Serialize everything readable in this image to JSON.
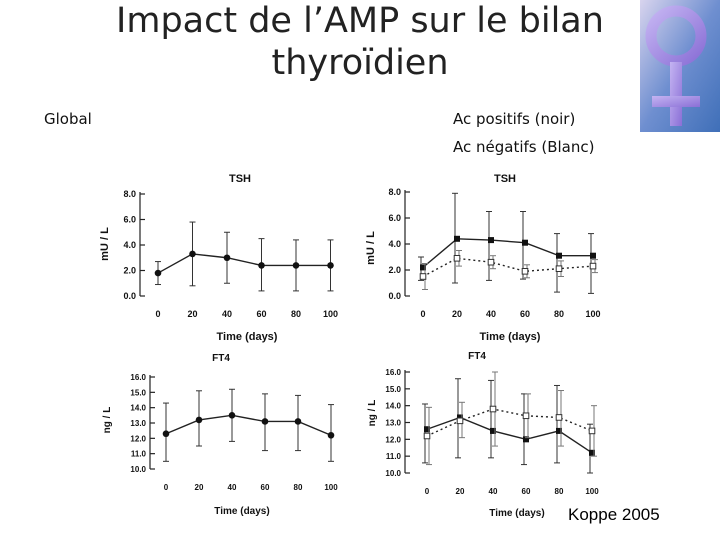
{
  "slide": {
    "title_line1": "Impact de l’AMP sur le bilan",
    "title_line2": "thyroïdien",
    "label_global": "Global",
    "label_positive": "Ac positifs (noir)",
    "label_negative": "Ac négatifs (Blanc)",
    "credit": "Koppe 2005"
  },
  "logo": {
    "icon": "female-symbol-icon",
    "color": "#8a6fd6",
    "background": "#4a7fc0"
  },
  "chart_data": [
    {
      "id": "tsh-global",
      "type": "line",
      "title": "TSH",
      "xlabel": "Time (days)",
      "ylabel": "mU / L",
      "x": [
        0,
        20,
        40,
        60,
        80,
        100
      ],
      "x_tick_labels": [
        "0",
        "20",
        "40",
        "60",
        "80",
        "100"
      ],
      "y_tick_labels": [
        "0.0",
        "2.0",
        "4.0",
        "6.0",
        "8.0"
      ],
      "ylim": [
        0,
        8
      ],
      "series": [
        {
          "name": "Global",
          "style": "solid",
          "marker": "filled-circle",
          "values": [
            1.8,
            3.3,
            3.0,
            2.4,
            2.4,
            2.4
          ],
          "err_upper": [
            2.7,
            5.8,
            5.0,
            4.5,
            4.4,
            4.4
          ],
          "err_lower": [
            0.9,
            0.8,
            1.0,
            0.4,
            0.4,
            0.4
          ]
        }
      ]
    },
    {
      "id": "tsh-antibodies",
      "type": "line",
      "title": "TSH",
      "xlabel": "Time (days)",
      "ylabel": "mU / L",
      "x": [
        0,
        20,
        40,
        60,
        80,
        100
      ],
      "x_tick_labels": [
        "0",
        "20",
        "40",
        "60",
        "80",
        "100"
      ],
      "y_tick_labels": [
        "0.0",
        "2.0",
        "4.0",
        "6.0",
        "8.0"
      ],
      "ylim": [
        0,
        8
      ],
      "series": [
        {
          "name": "Ac positifs",
          "style": "solid",
          "marker": "filled-square",
          "values": [
            2.2,
            4.4,
            4.3,
            4.1,
            3.1,
            3.1
          ],
          "err_upper": [
            3.0,
            7.9,
            6.5,
            6.5,
            4.8,
            4.8
          ],
          "err_lower": [
            1.2,
            1.0,
            1.2,
            1.3,
            0.3,
            0.2
          ]
        },
        {
          "name": "Ac négatifs",
          "style": "dotted",
          "marker": "open-square",
          "values": [
            1.5,
            2.9,
            2.6,
            1.9,
            2.1,
            2.3
          ],
          "err_upper": [
            2.5,
            3.5,
            3.1,
            2.4,
            2.7,
            2.8
          ],
          "err_lower": [
            0.5,
            2.3,
            2.1,
            1.4,
            1.5,
            1.8
          ]
        }
      ]
    },
    {
      "id": "ft4-global",
      "type": "line",
      "title": "FT4",
      "xlabel": "Time (days)",
      "ylabel": "ng / L",
      "x": [
        0,
        20,
        40,
        60,
        80,
        100
      ],
      "x_tick_labels": [
        "0",
        "20",
        "40",
        "60",
        "80",
        "100"
      ],
      "y_tick_labels": [
        "10.0",
        "11.0",
        "12.0",
        "13.0",
        "14.0",
        "15.0",
        "16.0"
      ],
      "ylim": [
        10,
        16
      ],
      "series": [
        {
          "name": "Global",
          "style": "solid",
          "marker": "filled-circle",
          "values": [
            12.3,
            13.2,
            13.5,
            13.1,
            13.1,
            12.2
          ],
          "err_upper": [
            14.3,
            15.1,
            15.2,
            14.9,
            14.8,
            14.2
          ],
          "err_lower": [
            10.5,
            11.5,
            11.8,
            11.2,
            11.2,
            10.5
          ]
        }
      ]
    },
    {
      "id": "ft4-antibodies",
      "type": "line",
      "title": "FT4",
      "xlabel": "Time (days)",
      "ylabel": "ng / L",
      "x": [
        0,
        20,
        40,
        60,
        80,
        100
      ],
      "x_tick_labels": [
        "0",
        "20",
        "40",
        "60",
        "80",
        "100"
      ],
      "y_tick_labels": [
        "10.0",
        "11.0",
        "12.0",
        "13.0",
        "14.0",
        "15.0",
        "16.0"
      ],
      "ylim": [
        10,
        16
      ],
      "series": [
        {
          "name": "Ac positifs",
          "style": "solid",
          "marker": "filled-square",
          "values": [
            12.6,
            13.3,
            12.5,
            12.0,
            12.5,
            11.2
          ],
          "err_upper": [
            14.1,
            15.6,
            15.5,
            14.7,
            15.2,
            12.9
          ],
          "err_lower": [
            10.6,
            10.9,
            10.9,
            10.5,
            10.6,
            10.0
          ]
        },
        {
          "name": "Ac négatifs",
          "style": "dotted",
          "marker": "open-square",
          "values": [
            12.2,
            13.1,
            13.8,
            13.4,
            13.3,
            12.5
          ],
          "err_upper": [
            13.9,
            14.2,
            16.0,
            14.7,
            14.9,
            14.0
          ],
          "err_lower": [
            10.5,
            12.1,
            11.6,
            12.1,
            11.6,
            11.0
          ]
        }
      ]
    }
  ]
}
